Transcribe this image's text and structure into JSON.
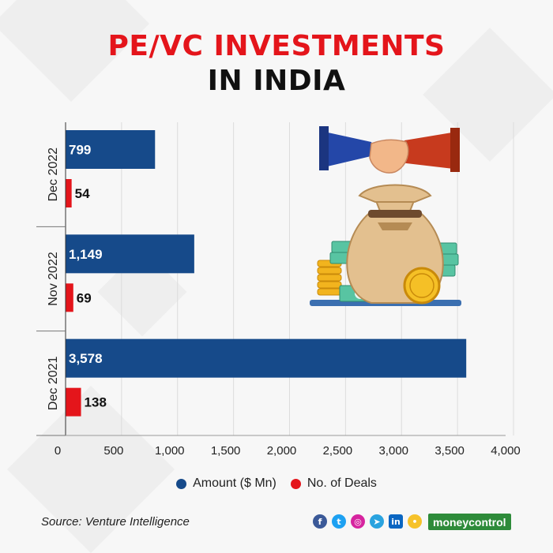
{
  "header": {
    "title_line1": "PE/VC INVESTMENTS",
    "title_line2": "IN INDIA"
  },
  "colors": {
    "amount": "#164a8a",
    "deals": "#e4151b",
    "title_red": "#e4151b",
    "title_dark": "#111111"
  },
  "chart_data": {
    "type": "bar",
    "orientation": "horizontal",
    "categories": [
      "Dec 2022",
      "Nov 2022",
      "Dec 2021"
    ],
    "series": [
      {
        "name": "Amount ($ Mn)",
        "values": [
          799,
          1149,
          3578
        ],
        "labels": [
          "799",
          "1,149",
          "3,578"
        ]
      },
      {
        "name": "No. of Deals",
        "values": [
          54,
          69,
          138
        ],
        "labels": [
          "54",
          "69",
          "138"
        ]
      }
    ],
    "xlim": [
      0,
      4000
    ],
    "x_ticks": [
      "0",
      "500",
      "1,000",
      "1,500",
      "2,000",
      "2,500",
      "3,000",
      "3,500",
      "4,000"
    ],
    "grid": true,
    "legend_position": "bottom"
  },
  "legend": {
    "amount_label": "Amount ($ Mn)",
    "deals_label": "No. of Deals"
  },
  "footer": {
    "source": "Source: Venture Intelligence",
    "brand": "moneycontrol",
    "social_icons": [
      "facebook-icon",
      "twitter-icon",
      "instagram-icon",
      "telegram-icon",
      "linkedin-icon",
      "koo-icon"
    ],
    "social_glyphs": [
      "f",
      "t",
      "◎",
      "➤",
      "in",
      "•"
    ]
  }
}
